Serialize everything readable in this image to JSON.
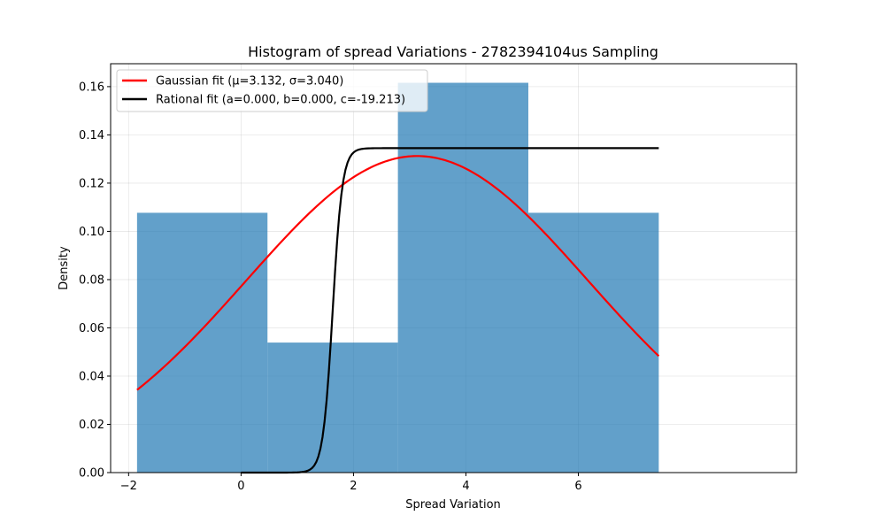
{
  "chart_data": {
    "type": "bar",
    "title": "Histogram of spread Variations - 2782394104us Sampling",
    "xlabel": "Spread Variation",
    "ylabel": "Density",
    "xlim": [
      -2.32,
      9.88
    ],
    "ylim": [
      0,
      0.1695
    ],
    "xticks": [
      -2,
      0,
      2,
      4,
      6
    ],
    "yticks": [
      0.0,
      0.02,
      0.04,
      0.06,
      0.08,
      0.1,
      0.12,
      0.14,
      0.16
    ],
    "grid": true,
    "legend_position": "top-left",
    "histogram": {
      "bin_edges": [
        -1.85,
        0.47,
        2.79,
        5.11,
        7.43
      ],
      "values": [
        0.1077,
        0.0539,
        0.1616,
        0.1077
      ],
      "color": "#1f77b4"
    },
    "series": [
      {
        "name": "Gaussian fit (μ=3.132, σ=3.040)",
        "kind": "gaussian",
        "mu": 3.132,
        "sigma": 3.04,
        "x_range": [
          -1.85,
          7.43
        ],
        "color": "#ff0000"
      },
      {
        "name": "Rational fit (a=0.000, b=0.000, c=-19.213)",
        "kind": "logistic",
        "plateau": 0.1345,
        "midpoint": 1.63,
        "steepness": 11.6,
        "x_range": [
          0,
          7.43
        ],
        "color": "#000000"
      }
    ]
  }
}
